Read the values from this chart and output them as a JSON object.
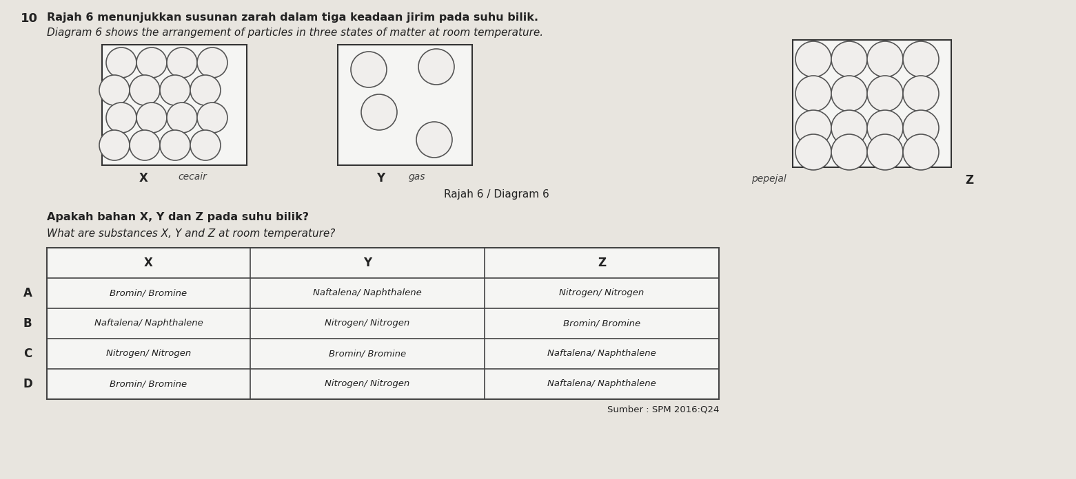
{
  "question_number": "10",
  "title_malay": "Rajah 6 menunjukkan susunan zarah dalam tiga keadaan jirim pada suhu bilik.",
  "title_english": "Diagram 6 shows the arrangement of particles in three states of matter at room temperature.",
  "diagram_label": "Rajah 6 / Diagram 6",
  "question_malay": "Apakah bahan X, Y dan Z pada suhu bilik?",
  "question_english": "What are substances X, Y and Z at room temperature?",
  "label_x": "X",
  "label_y": "Y",
  "label_z": "Z",
  "handwritten_x": "cecair",
  "handwritten_y": "gas",
  "handwritten_z": "pepejal",
  "table_header": [
    "X",
    "Y",
    "Z"
  ],
  "options": [
    "A",
    "B",
    "C",
    "D"
  ],
  "table_data": [
    [
      "Bromin/ Bromine",
      "Naftalena/ Naphthalene",
      "Nitrogen/ Nitrogen"
    ],
    [
      "Naftalena/ Naphthalene",
      "Nitrogen/ Nitrogen",
      "Bromin/ Bromine"
    ],
    [
      "Nitrogen/ Nitrogen",
      "Bromin/ Bromine",
      "Naftalena/ Naphthalene"
    ],
    [
      "Bromin/ Bromine",
      "Nitrogen/ Nitrogen",
      "Naftalena/ Naphthalene"
    ]
  ],
  "source": "Sumber : SPM 2016:Q24",
  "bg_color": "#e8e5df",
  "box_fc": "#f5f5f3",
  "circle_fc": "#f0eeec",
  "circle_ec": "#555555",
  "table_fc": "#f5f5f3",
  "table_ec": "#444444",
  "text_color": "#222222",
  "fig_width": 15.61,
  "fig_height": 6.96
}
